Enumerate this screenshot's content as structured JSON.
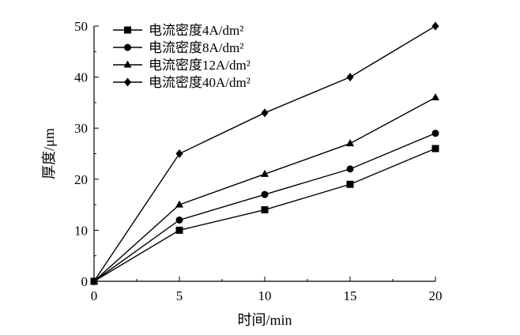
{
  "chart_data": {
    "type": "line",
    "xlabel": "时间/min",
    "ylabel": "厚度/μm",
    "xlim": [
      0,
      20
    ],
    "ylim": [
      0,
      50
    ],
    "x_ticks": [
      "0",
      "5",
      "10",
      "15",
      "20"
    ],
    "y_ticks": [
      "0",
      "10",
      "20",
      "30",
      "40",
      "50"
    ],
    "x": [
      0,
      5,
      10,
      15,
      20
    ],
    "legend_position": "top-left",
    "series": [
      {
        "name": "电流密度4A/dm²",
        "marker": "square",
        "values": [
          0,
          10,
          14,
          19,
          26
        ]
      },
      {
        "name": "电流密度8A/dm²",
        "marker": "circle",
        "values": [
          0,
          12,
          17,
          22,
          29
        ]
      },
      {
        "name": "电流密度12A/dm²",
        "marker": "triangle",
        "values": [
          0,
          15,
          21,
          27,
          36
        ]
      },
      {
        "name": "电流密度40A/dm²",
        "marker": "diamond",
        "values": [
          0,
          25,
          33,
          40,
          50
        ]
      }
    ],
    "grid": false,
    "line_color": "#000000"
  }
}
